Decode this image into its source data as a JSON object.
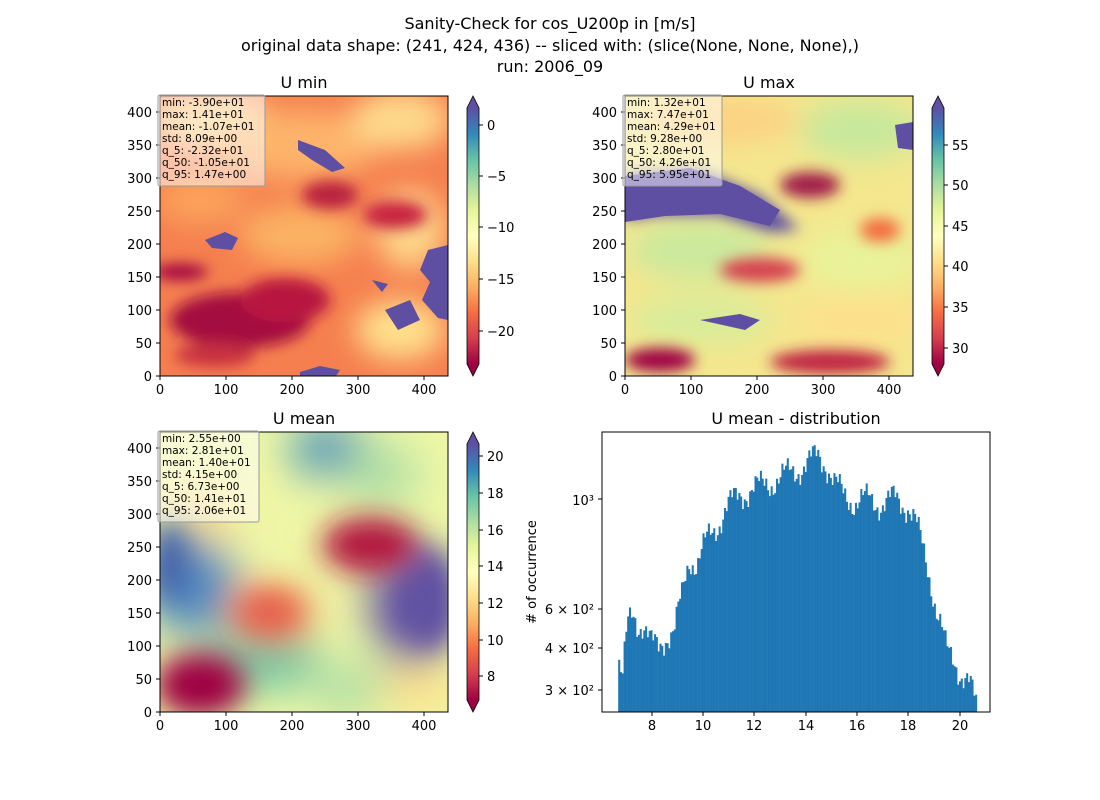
{
  "figure": {
    "title_lines": [
      "Sanity-Check for cos_U200p in [m/s]",
      "original data shape: (241, 424, 436) -- sliced with: (slice(None, None, None),)",
      "run: 2006_09"
    ]
  },
  "colors": {
    "hist_bar": "#1f77b4",
    "spectral": [
      "#9e0142",
      "#d53e4f",
      "#f46d43",
      "#fdae61",
      "#fee08b",
      "#ffffbf",
      "#e6f598",
      "#abdda4",
      "#66c2a5",
      "#3288bd",
      "#5e4fa2"
    ]
  },
  "chart_data": [
    {
      "type": "heatmap",
      "title": "U min",
      "xlim": [
        0,
        436
      ],
      "ylim": [
        0,
        424
      ],
      "x_ticks": [
        "0",
        "100",
        "200",
        "300",
        "400"
      ],
      "y_ticks": [
        "0",
        "50",
        "100",
        "150",
        "200",
        "250",
        "300",
        "350",
        "400"
      ],
      "colorbar": {
        "range": [
          -23.2,
          1.47
        ],
        "ticks": [
          "0",
          "−5",
          "−10",
          "−15",
          "−20"
        ],
        "extend": "both"
      },
      "stats": [
        "min: -3.90e+01",
        "max: 1.41e+01",
        "mean: -1.07e+01",
        "std: 8.09e+00",
        "q_5: -2.32e+01",
        "q_50: -1.05e+01",
        "q_95: 1.47e+00"
      ]
    },
    {
      "type": "heatmap",
      "title": "U max",
      "xlim": [
        0,
        436
      ],
      "ylim": [
        0,
        424
      ],
      "x_ticks": [
        "0",
        "100",
        "200",
        "300",
        "400"
      ],
      "y_ticks": [
        "0",
        "50",
        "100",
        "150",
        "200",
        "250",
        "300",
        "350",
        "400"
      ],
      "colorbar": {
        "range": [
          28.0,
          59.5
        ],
        "ticks": [
          "55",
          "50",
          "45",
          "40",
          "35",
          "30"
        ],
        "extend": "both"
      },
      "stats": [
        "min: 1.32e+01",
        "max: 7.47e+01",
        "mean: 4.29e+01",
        "std: 9.28e+00",
        "q_5: 2.80e+01",
        "q_50: 4.26e+01",
        "q_95: 5.95e+01"
      ]
    },
    {
      "type": "heatmap",
      "title": "U mean",
      "xlim": [
        0,
        436
      ],
      "ylim": [
        0,
        424
      ],
      "x_ticks": [
        "0",
        "100",
        "200",
        "300",
        "400"
      ],
      "y_ticks": [
        "0",
        "50",
        "100",
        "150",
        "200",
        "250",
        "300",
        "350",
        "400"
      ],
      "colorbar": {
        "range": [
          6.73,
          20.6
        ],
        "ticks": [
          "20",
          "18",
          "16",
          "14",
          "12",
          "10",
          "8"
        ],
        "extend": "both"
      },
      "stats": [
        "min: 2.55e+00",
        "max: 2.81e+01",
        "mean: 1.40e+01",
        "std: 4.15e+00",
        "q_5: 6.73e+00",
        "q_50: 1.41e+01",
        "q_95: 2.06e+01"
      ]
    },
    {
      "type": "bar",
      "title": "U mean - distribution",
      "ylabel": "# of occurrence",
      "xlabel": "",
      "yscale": "log",
      "xlim": [
        6.1,
        21.2
      ],
      "ylim": [
        270,
        1600
      ],
      "x_ticks": [
        "8",
        "10",
        "12",
        "14",
        "16",
        "18",
        "20"
      ],
      "y_ticks": [
        "10³",
        "6 × 10²",
        "4 × 10²",
        "3 × 10²"
      ],
      "x": [
        6.73,
        20.65
      ],
      "bin_width": 0.0698,
      "anchors": [
        [
          6.73,
          370
        ],
        [
          6.9,
          330
        ],
        [
          7.1,
          470
        ],
        [
          7.3,
          510
        ],
        [
          7.5,
          475
        ],
        [
          7.7,
          470
        ],
        [
          8.0,
          415
        ],
        [
          8.3,
          410
        ],
        [
          8.6,
          440
        ],
        [
          8.9,
          445
        ],
        [
          9.2,
          560
        ],
        [
          9.5,
          720
        ],
        [
          9.8,
          690
        ],
        [
          10.2,
          810
        ],
        [
          10.6,
          890
        ],
        [
          11.0,
          1000
        ],
        [
          11.5,
          1080
        ],
        [
          12.0,
          1110
        ],
        [
          12.5,
          1160
        ],
        [
          13.0,
          1180
        ],
        [
          13.5,
          1260
        ],
        [
          14.0,
          1280
        ],
        [
          14.5,
          1390
        ],
        [
          14.8,
          1320
        ],
        [
          15.1,
          1160
        ],
        [
          15.5,
          1080
        ],
        [
          16.0,
          1020
        ],
        [
          16.5,
          1050
        ],
        [
          17.0,
          1010
        ],
        [
          17.5,
          1050
        ],
        [
          18.0,
          1000
        ],
        [
          18.3,
          900
        ],
        [
          18.6,
          760
        ],
        [
          18.9,
          620
        ],
        [
          19.1,
          520
        ],
        [
          19.3,
          460
        ],
        [
          19.5,
          400
        ],
        [
          19.8,
          380
        ],
        [
          20.1,
          340
        ],
        [
          20.4,
          320
        ],
        [
          20.65,
          285
        ]
      ]
    }
  ]
}
